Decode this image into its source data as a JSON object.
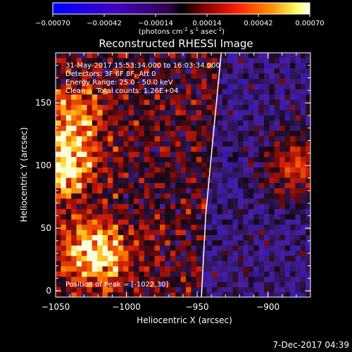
{
  "colorbar": {
    "ticks": [
      "-0.00070",
      "-0.00042",
      "-0.00014",
      "0.00014",
      "0.00042",
      "0.00070"
    ],
    "unit_prefix": "(photons cm",
    "unit_sup1": "-2",
    "unit_mid": " s",
    "unit_sup2": "-1",
    "unit_mid2": " asec",
    "unit_sup3": "-2",
    "unit_suffix": ")"
  },
  "chart_data": {
    "type": "heatmap",
    "title": "Reconstructed RHESSI Image",
    "xlabel": "Heliocentric X (arcsec)",
    "ylabel": "Heliocentric Y (arcsec)",
    "xlim": [
      -1050,
      -870
    ],
    "ylim": [
      -5,
      190
    ],
    "x_ticks": [
      "−1050",
      "−1000",
      "−950",
      "−900"
    ],
    "x_tick_values": [
      -1050,
      -1000,
      -950,
      -900
    ],
    "y_ticks": [
      "0",
      "50",
      "100",
      "150"
    ],
    "y_tick_values": [
      0,
      50,
      100,
      150
    ],
    "colorbar_range": [
      -0.0007,
      0.0007
    ],
    "limb_line_x": [
      [
        -947,
        -5
      ],
      [
        -944,
        60
      ],
      [
        -939,
        120
      ],
      [
        -933,
        190
      ]
    ],
    "bright_regions": [
      {
        "x": -1022,
        "y": 30,
        "intensity": 0.95
      },
      {
        "x": -1045,
        "y": 100,
        "intensity": 0.9
      },
      {
        "x": -880,
        "y": 100,
        "intensity": 0.85
      },
      {
        "x": -1035,
        "y": 140,
        "intensity": 0.6
      }
    ]
  },
  "annotations": {
    "line1": "31-May-2017 15:53:34.000 to 16:03:34.000",
    "line2": "Detectors: 3F 6F 8F, Att 0",
    "line3": "Energy Range: 25.0 - 50.0 keV",
    "line4": "Clean     Total counts: 1.26E+04",
    "peak": "Position of Peak = [-1022,30]"
  },
  "footer": {
    "timestamp": "7-Dec-2017 04:39"
  }
}
